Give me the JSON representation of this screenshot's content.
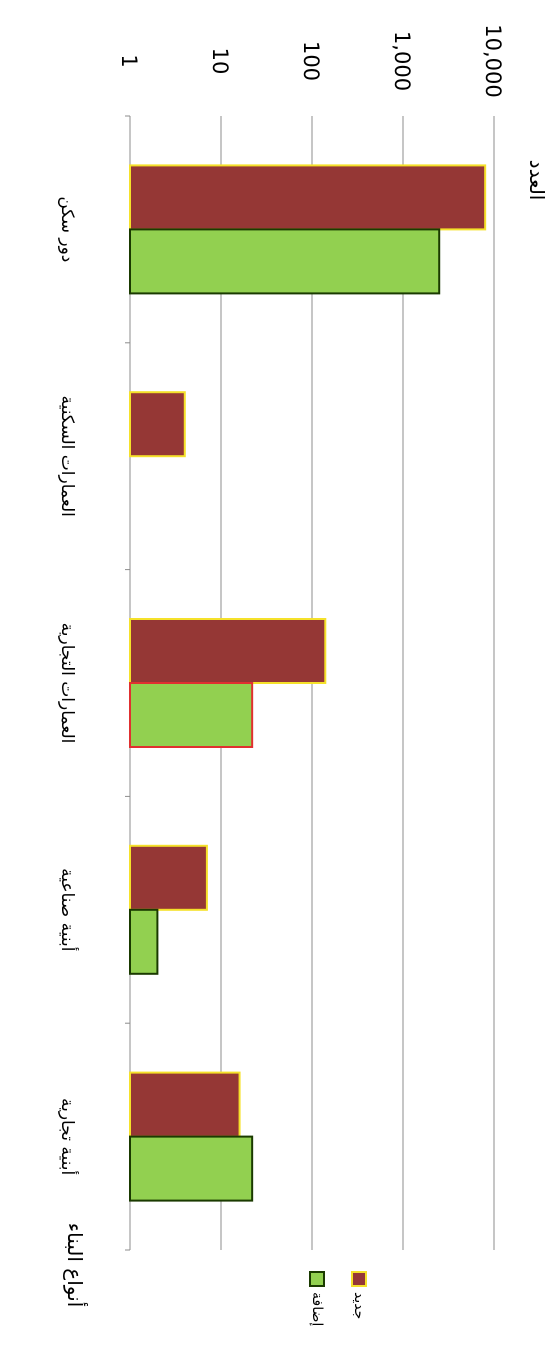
{
  "chart_data": {
    "type": "bar",
    "orientation": "horizontal-rotated",
    "scale": "log",
    "xlabel": "أنواع البناء",
    "ylabel": "العدد",
    "ylim": [
      1,
      10000
    ],
    "yticks": [
      1,
      10,
      100,
      1000,
      10000
    ],
    "ytick_labels": [
      "1",
      "10",
      "100",
      "1,000",
      "10,000"
    ],
    "categories": [
      "دور سكن",
      "العمارات السكنية",
      "العمارات التجارية",
      "أبنية صناعية",
      "أبنية تجارية"
    ],
    "series": [
      {
        "name": "جديد",
        "color": "#953735",
        "outline": "#f5e12a",
        "values": [
          8000,
          4,
          140,
          7,
          16
        ]
      },
      {
        "name": "إضافة",
        "color": "#92d050",
        "outline": "#1a3a00",
        "values": [
          2500,
          null,
          22,
          2,
          22
        ]
      }
    ],
    "grid": true,
    "legend_position": "bottom-right"
  }
}
